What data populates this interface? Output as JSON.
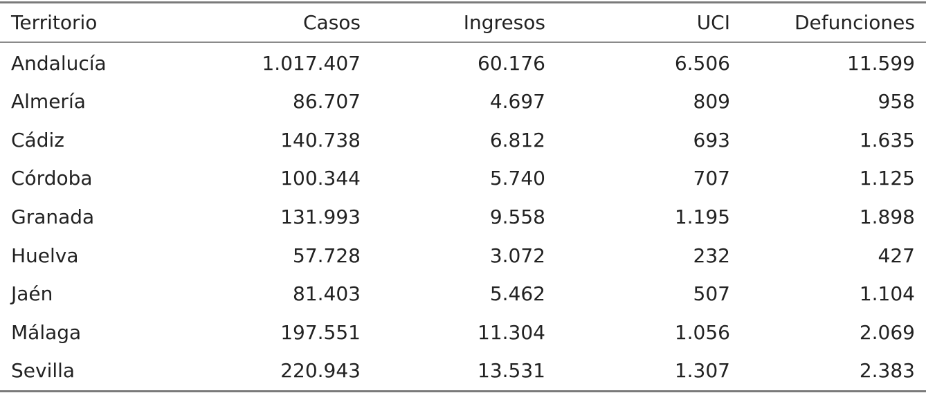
{
  "table": {
    "headers": [
      "Territorio",
      "Casos",
      "Ingresos",
      "UCI",
      "Defunciones"
    ],
    "rows": [
      [
        "Andalucía",
        "1.017.407",
        "60.176",
        "6.506",
        "11.599"
      ],
      [
        "Almería",
        "86.707",
        "4.697",
        "809",
        "958"
      ],
      [
        "Cádiz",
        "140.738",
        "6.812",
        "693",
        "1.635"
      ],
      [
        "Córdoba",
        "100.344",
        "5.740",
        "707",
        "1.125"
      ],
      [
        "Granada",
        "131.993",
        "9.558",
        "1.195",
        "1.898"
      ],
      [
        "Huelva",
        "57.728",
        "3.072",
        "232",
        "427"
      ],
      [
        "Jaén",
        "81.403",
        "5.462",
        "507",
        "1.104"
      ],
      [
        "Málaga",
        "197.551",
        "11.304",
        "1.056",
        "2.069"
      ],
      [
        "Sevilla",
        "220.943",
        "13.531",
        "1.307",
        "2.383"
      ]
    ]
  }
}
